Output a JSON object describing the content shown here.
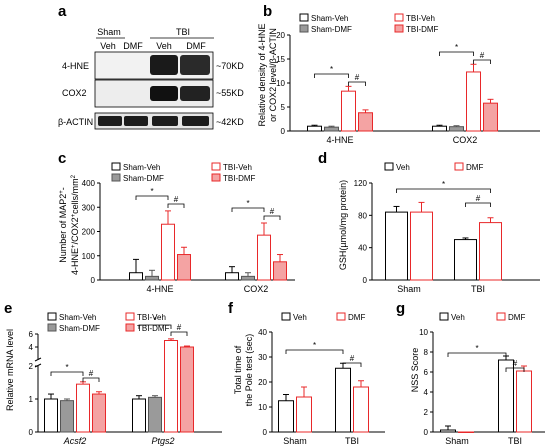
{
  "colors": {
    "veh_stroke": "#000000",
    "veh_fill": "#ffffff",
    "dmf_stroke": "#555555",
    "dmf_fill": "#9a9a9a",
    "tbi_stroke": "#e8282a",
    "tbi_fill": "#ffffff",
    "tbidmf_stroke": "#e8282a",
    "tbidmf_fill": "#f4a3a3"
  },
  "panel_a": {
    "letter": "a",
    "group_sham": "Sham",
    "group_tbi": "TBI",
    "lane_labels": [
      "Veh",
      "DMF",
      "Veh",
      "DMF"
    ],
    "bands": [
      {
        "name": "4-HNE",
        "kd": "~70KD"
      },
      {
        "name": "COX2",
        "kd": "~55KD"
      },
      {
        "name": "β-ACTIN",
        "kd": "~42KD"
      }
    ]
  },
  "chart_data": [
    {
      "panel": "b",
      "type": "bar",
      "ylabel": "Relative density of 4-HNE or COX2 level/β-ACTIN",
      "ylabel_lines": [
        "Relative density of 4-HNE",
        "or COX2 level/β-ACTIN"
      ],
      "ylim": [
        0,
        20
      ],
      "yticks": [
        "0",
        "5",
        "10",
        "15",
        "20"
      ],
      "categories": [
        "4-HNE",
        "COX2"
      ],
      "legend": [
        "Sham-Veh",
        "TBI-Veh",
        "Sham-DMF",
        "TBI-DMF"
      ],
      "series": [
        {
          "name": "Sham-Veh",
          "values": [
            1.0,
            1.0
          ],
          "errors": [
            0.2,
            0.2
          ]
        },
        {
          "name": "Sham-DMF",
          "values": [
            0.8,
            0.9
          ],
          "errors": [
            0.2,
            0.2
          ]
        },
        {
          "name": "TBI-Veh",
          "values": [
            8.3,
            12.3
          ],
          "errors": [
            1.0,
            1.6
          ]
        },
        {
          "name": "TBI-DMF",
          "values": [
            3.8,
            5.8
          ],
          "errors": [
            0.6,
            0.8
          ]
        }
      ],
      "annotations": [
        "*",
        "#",
        "*",
        "#"
      ]
    },
    {
      "panel": "c",
      "type": "bar",
      "ylabel": "Number of MAP2+- 4-HNE+/COX2+cells/mm2",
      "ylabel_line1": "Number of MAP2",
      "ylabel_line2": "4-HNE",
      "ylabel_sup_plus": "+",
      "ylabel_line1_dash": "-",
      "ylabel_mid": "/COX2",
      "ylabel_unit": "cells/mm",
      "ylabel_unit_sup": "2",
      "ylim": [
        0,
        400
      ],
      "yticks": [
        "0",
        "100",
        "200",
        "300",
        "400"
      ],
      "categories": [
        "4-HNE",
        "COX2"
      ],
      "legend": [
        "Sham-Veh",
        "TBI-Veh",
        "Sham-DMF",
        "TBI-DMF"
      ],
      "series": [
        {
          "name": "Sham-Veh",
          "values": [
            30,
            30
          ],
          "errors": [
            55,
            25
          ]
        },
        {
          "name": "Sham-DMF",
          "values": [
            15,
            15
          ],
          "errors": [
            25,
            15
          ]
        },
        {
          "name": "TBI-Veh",
          "values": [
            230,
            185
          ],
          "errors": [
            55,
            50
          ]
        },
        {
          "name": "TBI-DMF",
          "values": [
            105,
            75
          ],
          "errors": [
            30,
            30
          ]
        }
      ],
      "annotations": [
        "*",
        "#",
        "*",
        "#"
      ]
    },
    {
      "panel": "d",
      "type": "bar",
      "ylabel": "GSH(µmol/mg protein)",
      "ylim": [
        0,
        120
      ],
      "yticks": [
        "0",
        "40",
        "80",
        "120"
      ],
      "categories": [
        "Sham",
        "TBI"
      ],
      "legend": [
        "Veh",
        "DMF"
      ],
      "series": [
        {
          "name": "Veh",
          "values": [
            84,
            50
          ],
          "errors": [
            7,
            2
          ]
        },
        {
          "name": "DMF",
          "values": [
            84,
            71
          ],
          "errors": [
            12,
            6
          ]
        }
      ],
      "annotations": [
        "*",
        "#"
      ]
    },
    {
      "panel": "e",
      "type": "bar",
      "ylabel": "Relative mRNA level",
      "broken_axis": true,
      "yticks": [
        "0",
        "1",
        "2",
        "4",
        "6"
      ],
      "categories": [
        "Acsf2",
        "Ptgs2"
      ],
      "legend": [
        "Sham-Veh",
        "TBI-Veh",
        "Sham-DMF",
        "TBI-DMF"
      ],
      "series": [
        {
          "name": "Sham-Veh",
          "values": [
            1.0,
            1.0
          ],
          "errors": [
            0.15,
            0.1
          ]
        },
        {
          "name": "Sham-DMF",
          "values": [
            0.95,
            1.05
          ],
          "errors": [
            0.05,
            0.05
          ]
        },
        {
          "name": "TBI-Veh",
          "values": [
            1.45,
            5.0
          ],
          "errors": [
            0.07,
            0.25
          ]
        },
        {
          "name": "TBI-DMF",
          "values": [
            1.15,
            4.0
          ],
          "errors": [
            0.07,
            0.15
          ]
        }
      ],
      "annotations": [
        "*",
        "#",
        "*",
        "#"
      ]
    },
    {
      "panel": "f",
      "type": "bar",
      "ylabel": "Total time of the Pole test (sec)",
      "ylabel_lines": [
        "Total time of",
        "the Pole test (sec)"
      ],
      "ylim": [
        0,
        40
      ],
      "yticks": [
        "0",
        "10",
        "20",
        "30",
        "40"
      ],
      "categories": [
        "Sham",
        "TBI"
      ],
      "legend": [
        "Veh",
        "DMF"
      ],
      "series": [
        {
          "name": "Veh",
          "values": [
            12.5,
            25.5
          ],
          "errors": [
            2.5,
            2
          ]
        },
        {
          "name": "DMF",
          "values": [
            14,
            18
          ],
          "errors": [
            4,
            2.5
          ]
        }
      ],
      "annotations": [
        "*",
        "#"
      ]
    },
    {
      "panel": "g",
      "type": "bar",
      "ylabel": "NSS Score",
      "ylim": [
        0,
        10
      ],
      "yticks": [
        "0",
        "2",
        "4",
        "6",
        "8",
        "10"
      ],
      "categories": [
        "Sham",
        "TBI"
      ],
      "legend": [
        "Veh",
        "DMF"
      ],
      "series": [
        {
          "name": "Veh",
          "values": [
            0.2,
            7.2
          ],
          "errors": [
            0.4,
            0.4
          ]
        },
        {
          "name": "DMF",
          "values": [
            0,
            6.1
          ],
          "errors": [
            0,
            0.5
          ]
        }
      ],
      "annotations": [
        "*",
        "#"
      ]
    }
  ],
  "letters": {
    "b": "b",
    "c": "c",
    "d": "d",
    "e": "e",
    "f": "f",
    "g": "g"
  }
}
